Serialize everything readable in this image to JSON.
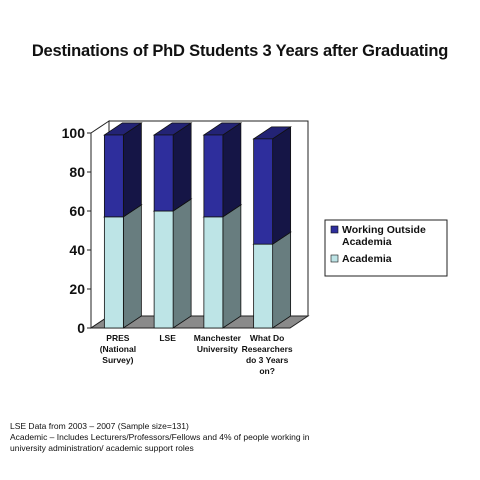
{
  "chart_data": {
    "type": "bar",
    "stacked": true,
    "three_d": true,
    "title": "Destinations of PhD Students 3 Years after Graduating",
    "categories": [
      [
        "PRES",
        "(National",
        "Survey)"
      ],
      [
        "LSE"
      ],
      [
        "Manchester",
        "University"
      ],
      [
        "What Do",
        "Researchers",
        "do 3 Years",
        "on?"
      ]
    ],
    "series": [
      {
        "name": "Academia",
        "values": [
          57,
          60,
          57,
          43
        ],
        "color": "#bde4e6"
      },
      {
        "name": "Working Outside Academia",
        "values": [
          42,
          39,
          42,
          54
        ],
        "color": "#2e2e9c"
      }
    ],
    "legend_entries": [
      {
        "series_index": 1,
        "lines": [
          "Working Outside",
          "Academia"
        ]
      },
      {
        "series_index": 0,
        "lines": [
          "Academia"
        ]
      }
    ],
    "ylim": [
      0,
      100
    ],
    "yticks": [
      "0",
      "20",
      "40",
      "60",
      "80",
      "100"
    ],
    "grid": false,
    "legend_position": "right"
  },
  "footnotes": {
    "line1": "LSE Data from 2003 – 2007 (Sample size=131)",
    "line2": "Academic – Includes Lecturers/Professors/Fellows and 4% of people working in",
    "line3": "university administration/ academic support roles"
  }
}
